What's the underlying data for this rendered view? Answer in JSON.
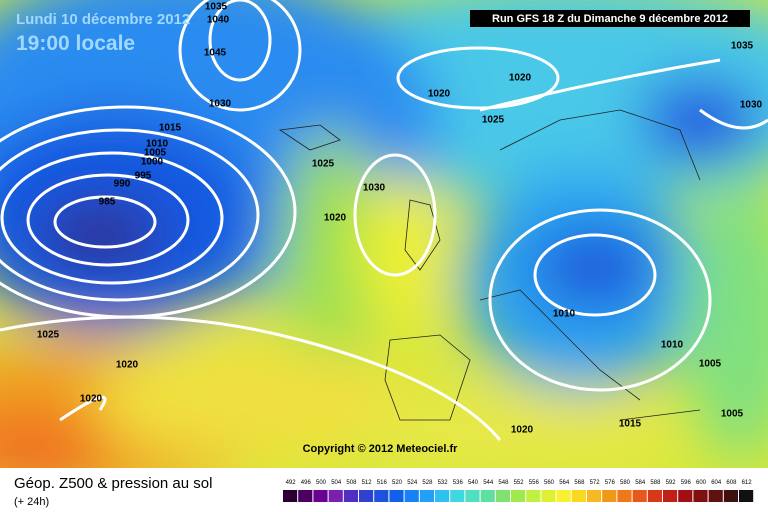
{
  "header": {
    "date": "Lundi 10 décembre 2012",
    "time": "19:00 locale",
    "run": "Run GFS 18 Z du Dimanche 9 décembre 2012"
  },
  "isobar_labels": [
    "1035",
    "1040",
    "1045",
    "1030",
    "1015",
    "1010",
    "1005",
    "1000",
    "995",
    "990",
    "985",
    "1025",
    "1030",
    "1020",
    "1020",
    "1020",
    "1025",
    "1035",
    "1030",
    "1010",
    "1010",
    "1005",
    "1005",
    "1015",
    "1020",
    "1025",
    "1020",
    "1020"
  ],
  "copyright": "Copyright © 2012 Meteociel.fr",
  "footer": {
    "title": "Géop. Z500 & pression au sol",
    "subtitle": "(+ 24h)"
  },
  "scale": [
    492,
    496,
    500,
    504,
    508,
    512,
    516,
    520,
    524,
    528,
    532,
    536,
    540,
    544,
    548,
    552,
    556,
    560,
    564,
    568,
    572,
    576,
    580,
    584,
    588,
    592,
    596,
    600,
    604,
    608,
    612
  ]
}
